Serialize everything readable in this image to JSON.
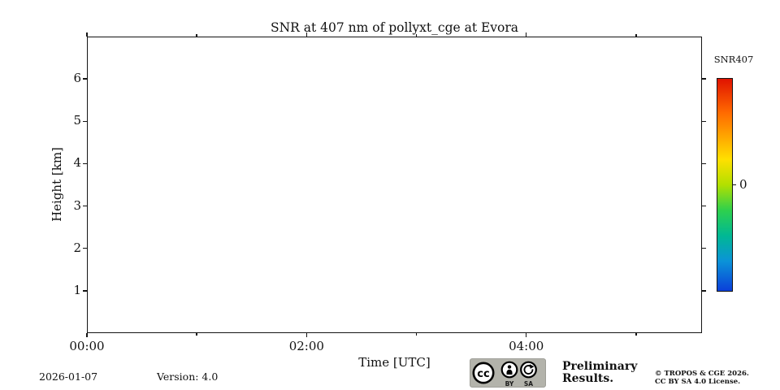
{
  "chart_data": {
    "type": "heatmap",
    "title": "SNR at 407 nm of pollyxt_cge at Evora",
    "xlabel": "Time [UTC]",
    "ylabel": "Height [km]",
    "x_range_hours": [
      0,
      5.6
    ],
    "y_range_km": [
      0,
      7
    ],
    "x_ticks": [
      {
        "hour": 0,
        "label": "00:00",
        "major": true
      },
      {
        "hour": 1,
        "label": "",
        "major": false
      },
      {
        "hour": 2,
        "label": "02:00",
        "major": true
      },
      {
        "hour": 3,
        "label": "",
        "major": false
      },
      {
        "hour": 4,
        "label": "04:00",
        "major": true
      },
      {
        "hour": 5,
        "label": "",
        "major": false
      }
    ],
    "y_ticks": [
      {
        "km": 1,
        "label": "1"
      },
      {
        "km": 2,
        "label": "2"
      },
      {
        "km": 3,
        "label": "3"
      },
      {
        "km": 4,
        "label": "4"
      },
      {
        "km": 5,
        "label": "5"
      },
      {
        "km": 6,
        "label": "6"
      }
    ],
    "grid": false,
    "series": [],
    "colorbar": {
      "label": "SNR407",
      "ticks": [
        {
          "frac_from_top": 0.5,
          "label": "0"
        }
      ],
      "gradient_top_to_bottom": [
        "#e01300 0%",
        "#ff6a00 16%",
        "#ffe000 38%",
        "#b2e000 50%",
        "#2ed04d 62%",
        "#00b894 74%",
        "#0b93d8 86%",
        "#0b3fd9 100%"
      ]
    }
  },
  "footer": {
    "date": "2026-01-07",
    "version": "Version: 4.0",
    "license_badge": {
      "cc": "cc",
      "by": "BY",
      "sa": "SA",
      "bg_color": "#b3b3ab"
    },
    "preliminary": {
      "line1": "Preliminary",
      "line2": "Results.",
      "color": "#f3322a"
    },
    "copyright_line1": "© TROPOS & CGE 2026.",
    "copyright_line2": "CC BY SA 4.0 License."
  },
  "colors": {
    "background": "#ffffff",
    "axis": "#141414",
    "text": "#111111"
  }
}
